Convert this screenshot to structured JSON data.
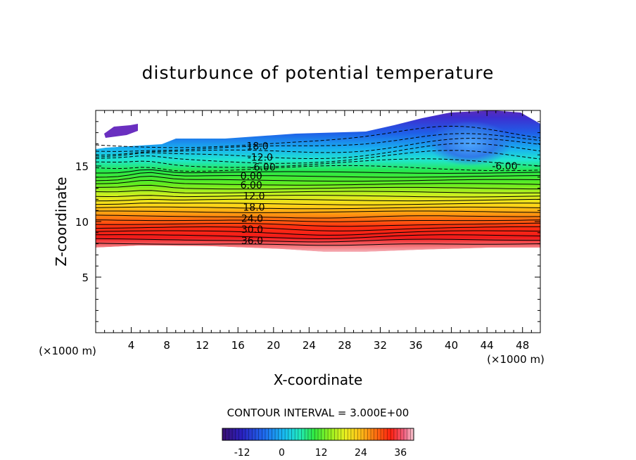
{
  "chart_data": {
    "type": "contour",
    "title": "disturbunce of potential temperature",
    "xlabel": "X-coordinate",
    "ylabel": "Z-coordinate",
    "x_unit": "(×1000 m)",
    "z_unit": "(×1000 m)",
    "xlim": [
      0,
      50
    ],
    "ylim": [
      0,
      20
    ],
    "x_ticks": [
      4,
      8,
      12,
      16,
      20,
      24,
      28,
      32,
      36,
      40,
      44,
      48
    ],
    "y_ticks": [
      5,
      10,
      15
    ],
    "contour_interval_text": "CONTOUR INTERVAL = 3.000E+00",
    "contour_interval": 3.0,
    "contour_labels": [
      {
        "text": "-18.0",
        "x": 18.0,
        "z": 16.8
      },
      {
        "text": "-12.0",
        "x": 18.5,
        "z": 15.8
      },
      {
        "text": "-6.00",
        "x": 18.8,
        "z": 14.9
      },
      {
        "text": "0.00",
        "x": 17.5,
        "z": 14.1
      },
      {
        "text": "6.00",
        "x": 17.5,
        "z": 13.3
      },
      {
        "text": "12.0",
        "x": 17.8,
        "z": 12.3
      },
      {
        "text": "18.0",
        "x": 17.8,
        "z": 11.3
      },
      {
        "text": "24.0",
        "x": 17.6,
        "z": 10.3
      },
      {
        "text": "30.0",
        "x": 17.6,
        "z": 9.3
      },
      {
        "text": "36.0",
        "x": 17.6,
        "z": 8.3
      },
      {
        "text": "-6.00",
        "x": 46.0,
        "z": 15.0
      }
    ],
    "colorbar": {
      "range": [
        -18,
        40
      ],
      "tick_labels": [
        "-12",
        "0",
        "12",
        "24",
        "36"
      ],
      "tick_values": [
        -12,
        0,
        12,
        24,
        36
      ]
    }
  }
}
